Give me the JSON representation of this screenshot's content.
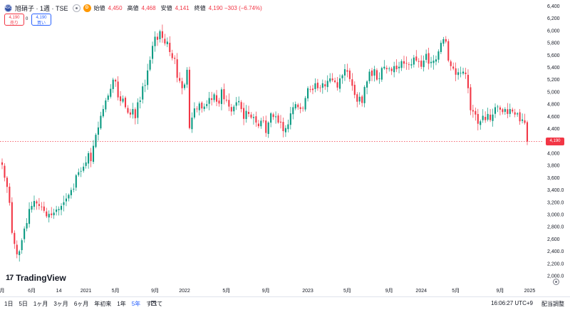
{
  "legend": {
    "symbol_icon": "exchange-logo-icon",
    "symbol_icon_text": "AGC",
    "title": "旭硝子 · 1週 · TSE",
    "eye_icon": "eye-icon",
    "d_badge": "D",
    "open_label": "始値",
    "open": "4,450",
    "high_label": "高値",
    "high": "4,468",
    "low_label": "安値",
    "low": "4,141",
    "close_label": "終値",
    "close": "4,190 −303 (−6.74%)"
  },
  "trade": {
    "sell_price": "4,190",
    "sell_label": "売り",
    "spread": "0",
    "buy_price": "4,190",
    "buy_label": "買い"
  },
  "price_tag": "4,190",
  "logo": {
    "mark": "17",
    "text": "TradingView"
  },
  "toolbar": {
    "ranges": [
      "1日",
      "5日",
      "1ヶ月",
      "3ヶ月",
      "6ヶ月",
      "年初来",
      "1年",
      "5年",
      "すべて"
    ],
    "active_range": "5年",
    "calendar_icon": "calendar-icon",
    "time": "16:06:27 UTC+9",
    "adjust": "配当調整"
  },
  "colors": {
    "up": "#089981",
    "down": "#f23645",
    "accent": "#2962ff",
    "last_price_line": "#f23645"
  },
  "chart_data": {
    "type": "candlestick",
    "interval": "1週",
    "y_ticks": [
      2000,
      2200,
      2400,
      2600,
      2800,
      3000,
      3200,
      3400,
      3600,
      3800,
      4000,
      4200,
      4400,
      4600,
      4800,
      5000,
      5200,
      5400,
      5600,
      5800,
      6000,
      6200,
      6400
    ],
    "y_tick_labels": [
      "2,000.0",
      "2,200.0",
      "2,400.0",
      "2,600",
      "2,800.0",
      "3,000.0",
      "3,200.0",
      "3,400.0",
      "3,600",
      "3,800",
      "4,000",
      "4,200",
      "4,400",
      "4,600",
      "4,800",
      "5,000",
      "5,200",
      "5,400",
      "5,600",
      "5,800",
      "6,000",
      "6,200",
      "6,400"
    ],
    "ylim": [
      1850,
      6500
    ],
    "x_labels": [
      "月",
      "6月",
      "14",
      "2021",
      "5月",
      "9月",
      "2022",
      "5月",
      "9月",
      "2023",
      "5月",
      "9月",
      "2024",
      "5月",
      "9月",
      "2025"
    ],
    "x_label_weeks": [
      0,
      12,
      23,
      34,
      46,
      62,
      74,
      91,
      107,
      124,
      140,
      157,
      170,
      184,
      202,
      214
    ],
    "last_close": 4190,
    "closes": [
      3810,
      3600,
      3450,
      3190,
      2700,
      2520,
      2350,
      2400,
      2580,
      2770,
      2860,
      3090,
      3140,
      3220,
      3180,
      3140,
      3120,
      3060,
      2970,
      3010,
      2990,
      3030,
      3080,
      3090,
      3140,
      3200,
      3260,
      3320,
      3400,
      3420,
      3640,
      3690,
      3710,
      3780,
      3850,
      4000,
      3870,
      4120,
      4300,
      4420,
      4610,
      4720,
      4860,
      4940,
      5050,
      5200,
      5170,
      4910,
      4850,
      4890,
      4750,
      4660,
      4630,
      4720,
      4570,
      4830,
      4860,
      5090,
      5110,
      5350,
      5520,
      5750,
      5900,
      5850,
      5990,
      5880,
      5790,
      5820,
      5650,
      5550,
      5540,
      5230,
      5180,
      5060,
      5120,
      5360,
      4410,
      4580,
      4730,
      4720,
      4810,
      4730,
      4760,
      4800,
      4900,
      4870,
      4960,
      4840,
      4810,
      5040,
      4880,
      4860,
      4760,
      4680,
      4760,
      4830,
      4850,
      4720,
      4560,
      4690,
      4640,
      4580,
      4590,
      4500,
      4440,
      4530,
      4530,
      4330,
      4500,
      4650,
      4590,
      4600,
      4500,
      4500,
      4360,
      4410,
      4470,
      4650,
      4750,
      4800,
      4750,
      4720,
      4730,
      4900,
      5060,
      5040,
      5030,
      5140,
      5060,
      5070,
      5140,
      5090,
      5180,
      5220,
      5190,
      5160,
      5070,
      5220,
      5270,
      5370,
      5330,
      5210,
      5100,
      4950,
      4840,
      4920,
      4820,
      5080,
      5170,
      5330,
      5260,
      5370,
      5200,
      5220,
      5390,
      5410,
      5370,
      5380,
      5340,
      5420,
      5370,
      5410,
      5500,
      5460,
      5460,
      5440,
      5450,
      5560,
      5510,
      5490,
      5410,
      5510,
      5620,
      5460,
      5490,
      5510,
      5530,
      5660,
      5800,
      5860,
      5820,
      5510,
      5420,
      5380,
      5280,
      5320,
      5310,
      5330,
      5290,
      5060,
      4700,
      4680,
      4630,
      4480,
      4520,
      4610,
      4540,
      4640,
      4540,
      4630,
      4750,
      4760,
      4710,
      4670,
      4720,
      4640,
      4720,
      4680,
      4630,
      4650,
      4520,
      4550,
      4493,
      4190
    ]
  }
}
